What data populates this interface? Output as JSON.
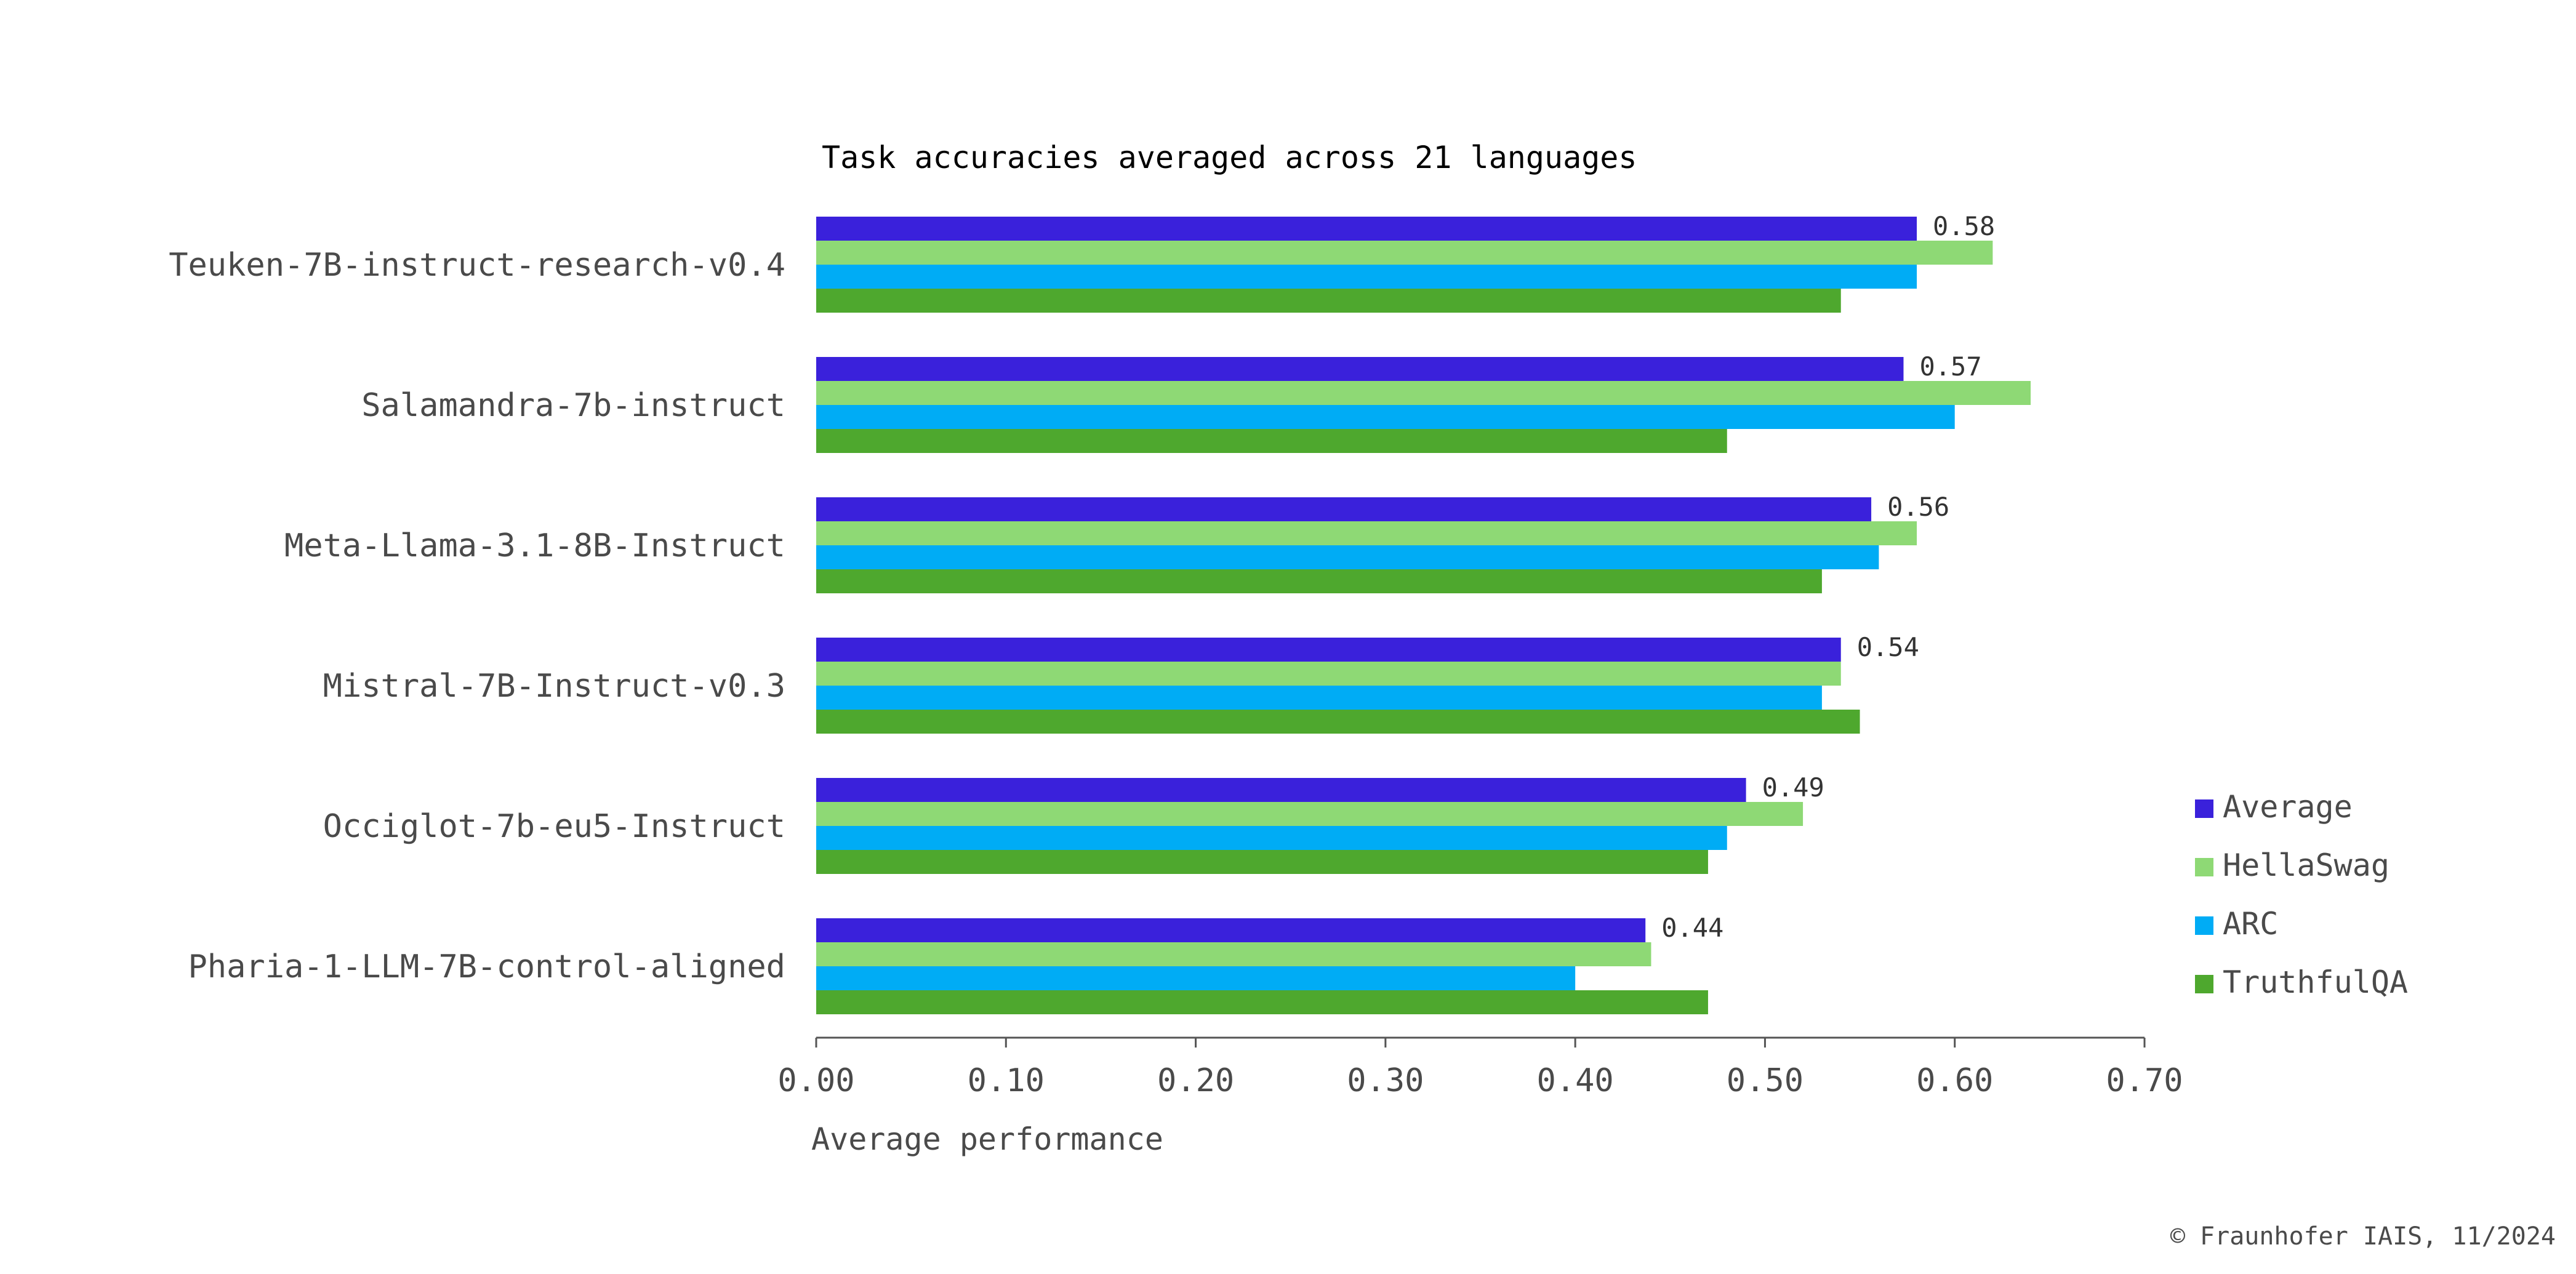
{
  "chart_data": {
    "type": "bar",
    "orientation": "horizontal",
    "title": "Task accuracies averaged across 21 languages",
    "xlabel": "Average performance",
    "ylabel": "",
    "xlim": [
      0,
      0.7
    ],
    "x_ticks": [
      "0.00",
      "0.10",
      "0.20",
      "0.30",
      "0.40",
      "0.50",
      "0.60",
      "0.70"
    ],
    "categories": [
      "Teuken-7B-instruct-research-v0.4",
      "Salamandra-7b-instruct",
      "Meta-Llama-3.1-8B-Instruct",
      "Mistral-7B-Instruct-v0.3",
      "Occiglot-7b-eu5-Instruct",
      "Pharia-1-LLM-7B-control-aligned"
    ],
    "series": [
      {
        "name": "Average",
        "color": "#3a21db",
        "values": [
          0.58,
          0.573,
          0.556,
          0.54,
          0.49,
          0.437
        ]
      },
      {
        "name": "HellaSwag",
        "color": "#8ed975",
        "values": [
          0.62,
          0.64,
          0.58,
          0.54,
          0.52,
          0.44
        ]
      },
      {
        "name": "ARC",
        "color": "#00acf5",
        "values": [
          0.58,
          0.6,
          0.56,
          0.53,
          0.48,
          0.4
        ]
      },
      {
        "name": "TruthfulQA",
        "color": "#4ea82e",
        "values": [
          0.54,
          0.48,
          0.53,
          0.55,
          0.47,
          0.47
        ]
      }
    ],
    "data_labels": [
      "0.58",
      "0.57",
      "0.56",
      "0.54",
      "0.49",
      "0.44"
    ],
    "grid": false,
    "legend_position": "right"
  },
  "footer": {
    "copyright": "© Fraunhofer IAIS, 11/2024"
  }
}
